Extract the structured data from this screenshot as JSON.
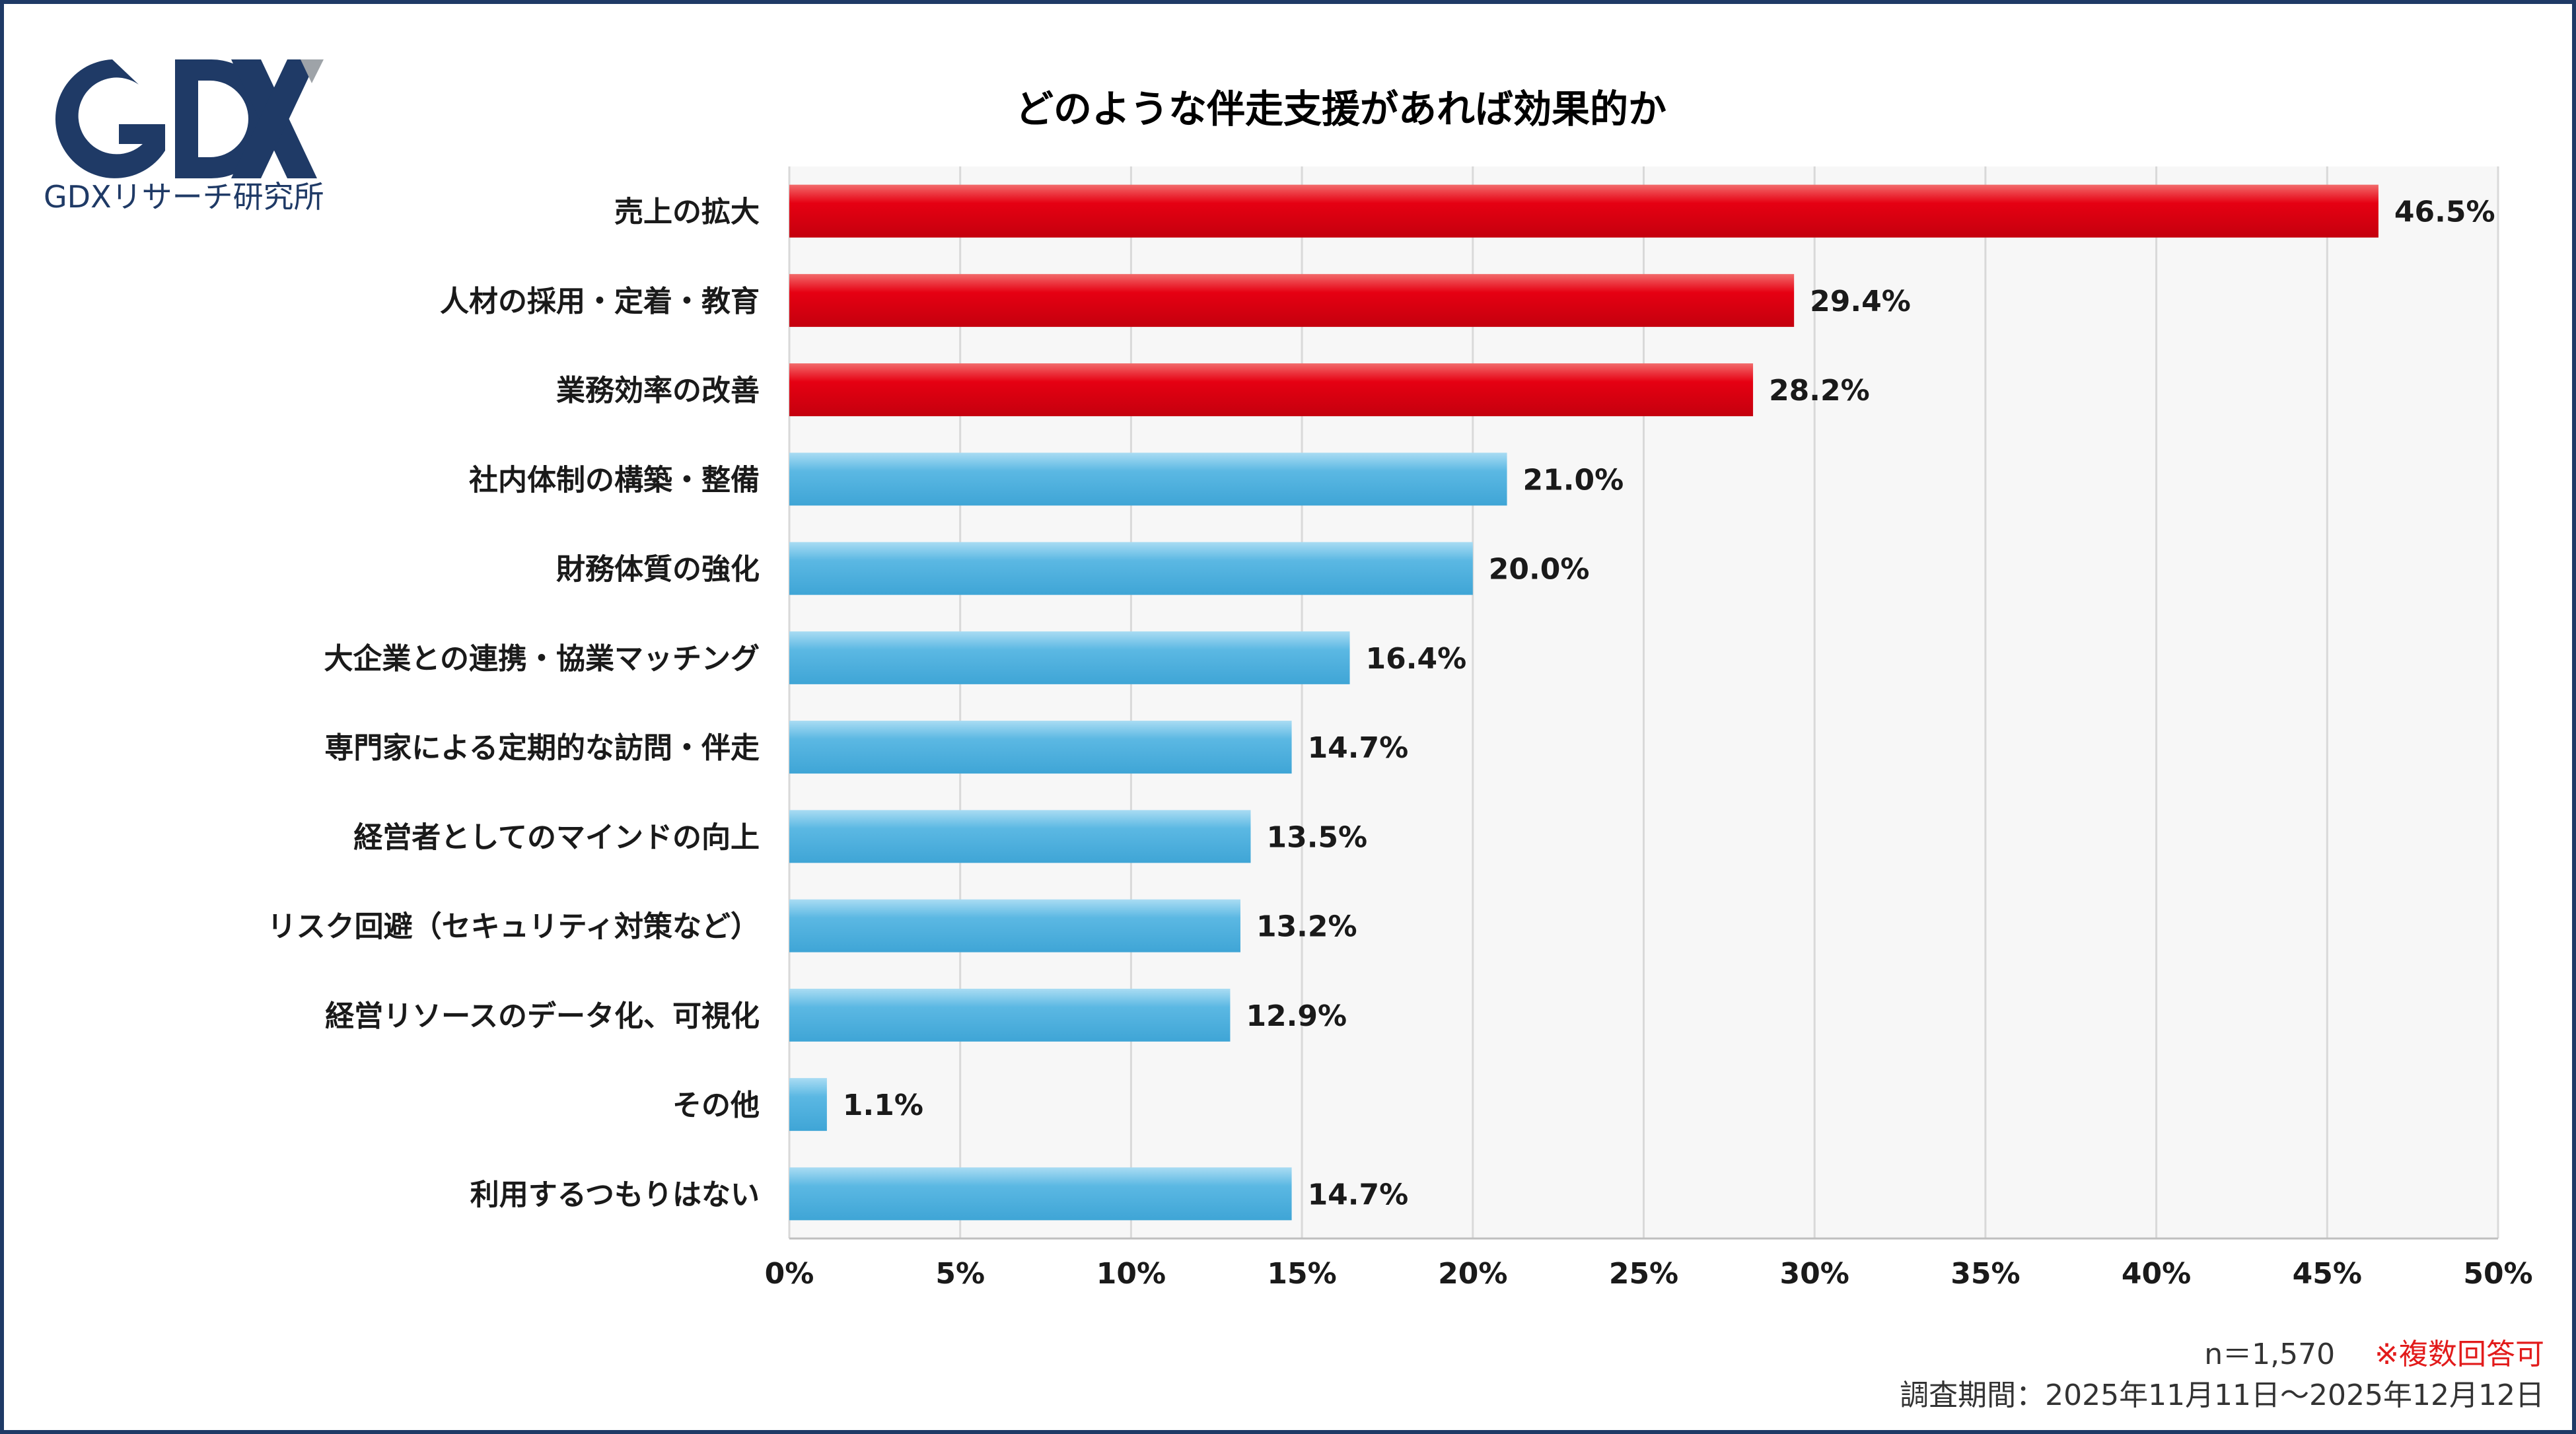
{
  "logo": {
    "mark": "GDX",
    "subtitle": "GDXリサーチ研究所"
  },
  "chart_data": {
    "type": "bar",
    "orientation": "horizontal",
    "title": "どのような伴走支援があれば効果的か",
    "categories": [
      "売上の拡大",
      "人材の採用・定着・教育",
      "業務効率の改善",
      "社内体制の構築・整備",
      "財務体質の強化",
      "大企業との連携・協業マッチング",
      "専門家による定期的な訪問・伴走",
      "経営者としてのマインドの向上",
      "リスク回避（セキュリティ対策など）",
      "経営リソースのデータ化、可視化",
      "その他",
      "利用するつもりはない"
    ],
    "values": [
      46.5,
      29.4,
      28.2,
      21.0,
      20.0,
      16.4,
      14.7,
      13.5,
      13.2,
      12.9,
      1.1,
      14.7
    ],
    "value_labels": [
      "46.5%",
      "29.4%",
      "28.2%",
      "21.0%",
      "20.0%",
      "16.4%",
      "14.7%",
      "13.5%",
      "13.2%",
      "12.9%",
      "1.1%",
      "14.7%"
    ],
    "highlight_count": 3,
    "xlim": [
      0,
      50
    ],
    "x_ticks": [
      0,
      5,
      10,
      15,
      20,
      25,
      30,
      35,
      40,
      45,
      50
    ],
    "x_tick_labels": [
      "0%",
      "5%",
      "10%",
      "15%",
      "20%",
      "25%",
      "30%",
      "35%",
      "40%",
      "45%",
      "50%"
    ],
    "grid": true,
    "colors": {
      "highlight": "#e60012",
      "normal": "#5bb8e3",
      "plot_bg": "#f7f7f7",
      "grid": "#d9d9d9"
    }
  },
  "footer": {
    "sample": "n＝1,570",
    "note": "※複数回答可",
    "period": "調査期間：2025年11月11日～2025年12月12日"
  }
}
